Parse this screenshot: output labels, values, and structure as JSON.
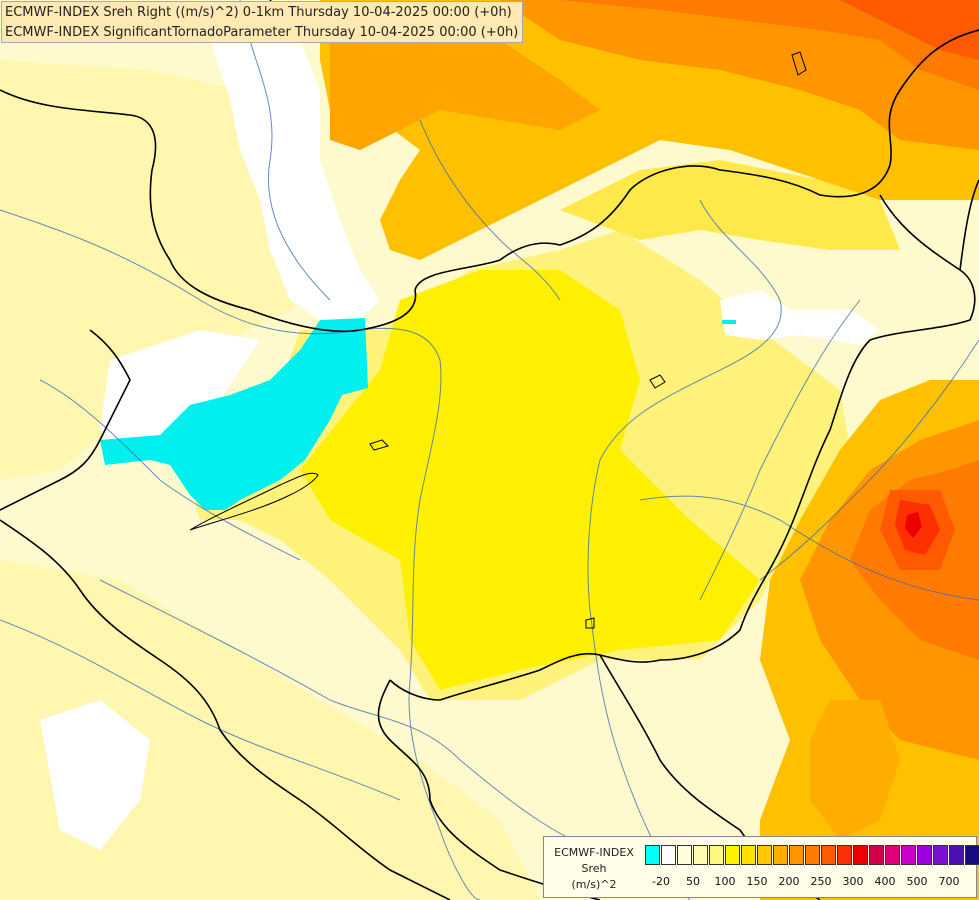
{
  "title": {
    "line1": "ECMWF-INDEX Sreh Right ((m/s)^2) 0-1km Thursday 10-04-2025 00:00 (+0h)",
    "line2": "ECMWF-INDEX SignificantTornadoParameter Thursday 10-04-2025 00:00 (+0h)"
  },
  "legend": {
    "line1": "ECMWF-INDEX",
    "line2": "Sreh",
    "line3": "(m/s)^2",
    "colors": [
      "#00ffff",
      "#ffffff",
      "#fffdd8",
      "#fffbb0",
      "#fff780",
      "#fff200",
      "#ffe000",
      "#ffc800",
      "#ffae00",
      "#ff9600",
      "#ff7a00",
      "#ff5a00",
      "#ff3000",
      "#ee0000",
      "#d0004a",
      "#e0007a",
      "#cc00cc",
      "#a000e0",
      "#7a10d0",
      "#4a10b0",
      "#1a0a80"
    ],
    "ticks": [
      "-20",
      "50",
      "100",
      "150",
      "200",
      "250",
      "300",
      "400",
      "500",
      "700"
    ]
  }
}
